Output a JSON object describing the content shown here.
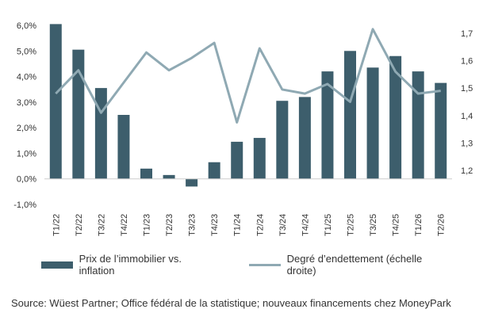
{
  "chart_data": {
    "type": "bar",
    "categories": [
      "T1/22",
      "T2/22",
      "T3/22",
      "T4/22",
      "T1/23",
      "T2/23",
      "T3/23",
      "T4/23",
      "T1/24",
      "T2/24",
      "T3/24",
      "T4/24",
      "T1/25",
      "T2/25",
      "T3/25",
      "T4/25",
      "T1/26",
      "T2/26"
    ],
    "series": [
      {
        "name": "Prix de l’immobilier vs. inflation",
        "type": "bar",
        "axis": "left",
        "values": [
          6.05,
          5.05,
          3.55,
          2.5,
          0.4,
          0.15,
          -0.3,
          0.65,
          1.45,
          1.6,
          3.05,
          3.2,
          4.2,
          5.0,
          4.35,
          4.8,
          4.2,
          3.75
        ]
      },
      {
        "name": "Degré d’endettement (échelle droite)",
        "type": "line",
        "axis": "right",
        "values": [
          1.48,
          1.565,
          1.41,
          1.52,
          1.63,
          1.565,
          1.61,
          1.665,
          1.375,
          1.645,
          1.495,
          1.48,
          1.515,
          1.45,
          1.715,
          1.56,
          1.48,
          1.49
        ]
      }
    ],
    "y_left": {
      "ylim": [
        -1,
        6
      ],
      "ticks": [
        "-1,0%",
        "0,0%",
        "1,0%",
        "2,0%",
        "3,0%",
        "4,0%",
        "5,0%",
        "6,0%"
      ]
    },
    "y_right": {
      "ylim": [
        1.2,
        1.7
      ],
      "ticks": [
        "1,2",
        "1,3",
        "1,4",
        "1,5",
        "1,6",
        "1,7"
      ]
    },
    "legend_placement": "bottom",
    "grid": false
  },
  "colors": {
    "bar": "#3d5e6c",
    "line": "#8fa9b3",
    "axis": "#888888"
  },
  "legend": {
    "bar_label": "Prix de l’immobilier vs. inflation",
    "line_label": "Degré d’endettement (échelle droite)"
  },
  "source": "Source: Wüest Partner; Office fédéral de la statistique; nouveaux financements chez MoneyPark"
}
